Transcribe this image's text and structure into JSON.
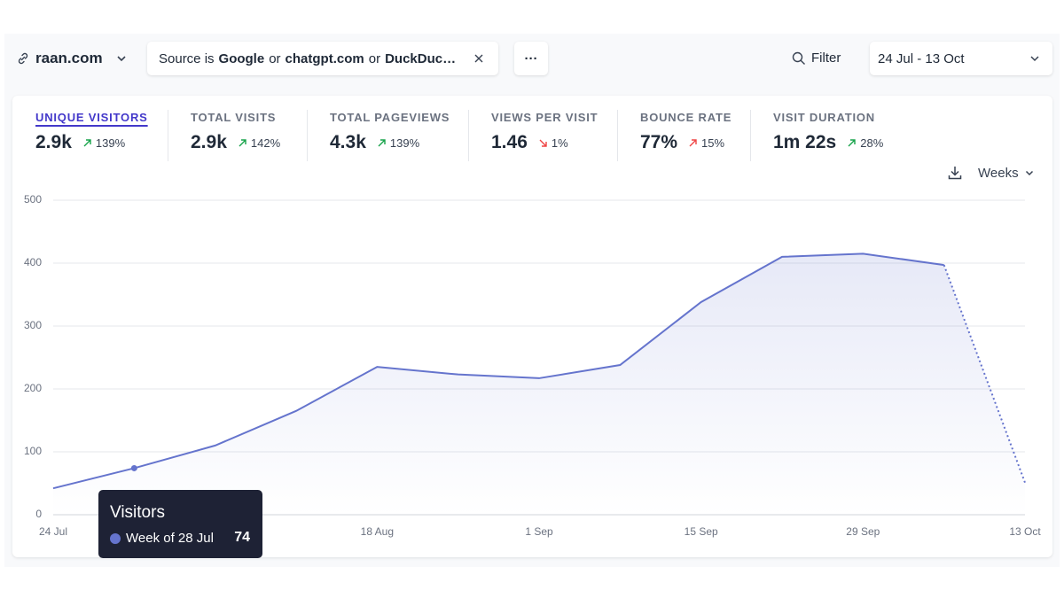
{
  "header": {
    "site": "raan.com",
    "filter": {
      "prefix": "Source is",
      "joiner": "or",
      "values": [
        "Google",
        "chatgpt.com",
        "DuckDuc…"
      ]
    },
    "more": "···",
    "filter_button": "Filter",
    "date_range": "24 Jul - 13 Oct"
  },
  "metrics": {
    "active": 0,
    "items": [
      {
        "label": "UNIQUE VISITORS",
        "value": "2.9k",
        "change": "139%",
        "trend": "up",
        "color": "#16a34a"
      },
      {
        "label": "TOTAL VISITS",
        "value": "2.9k",
        "change": "142%",
        "trend": "up",
        "color": "#16a34a"
      },
      {
        "label": "TOTAL PAGEVIEWS",
        "value": "4.3k",
        "change": "139%",
        "trend": "up",
        "color": "#16a34a"
      },
      {
        "label": "VIEWS PER VISIT",
        "value": "1.46",
        "change": "1%",
        "trend": "down",
        "color": "#ef4444"
      },
      {
        "label": "BOUNCE RATE",
        "value": "77%",
        "change": "15%",
        "trend": "up",
        "color": "#ef4444"
      },
      {
        "label": "VISIT DURATION",
        "value": "1m 22s",
        "change": "28%",
        "trend": "up",
        "color": "#16a34a"
      }
    ]
  },
  "interval": "Weeks",
  "chart_data": {
    "type": "line",
    "categories": [
      "24 Jul",
      null,
      null,
      null,
      "18 Aug",
      null,
      "1 Sep",
      null,
      "15 Sep",
      null,
      "29 Sep",
      null,
      "13 Oct"
    ],
    "values": [
      42,
      74,
      110,
      165,
      235,
      223,
      217,
      238,
      338,
      410,
      415,
      397,
      51
    ],
    "color": "#6574cd",
    "area": true,
    "dotted_last_segment": true,
    "ylim": [
      0,
      500
    ],
    "yticks": [
      0,
      100,
      200,
      300,
      400,
      500
    ],
    "grid": true,
    "tooltip": {
      "title": "Visitors",
      "label": "Week of 28 Jul",
      "index": 1
    }
  }
}
